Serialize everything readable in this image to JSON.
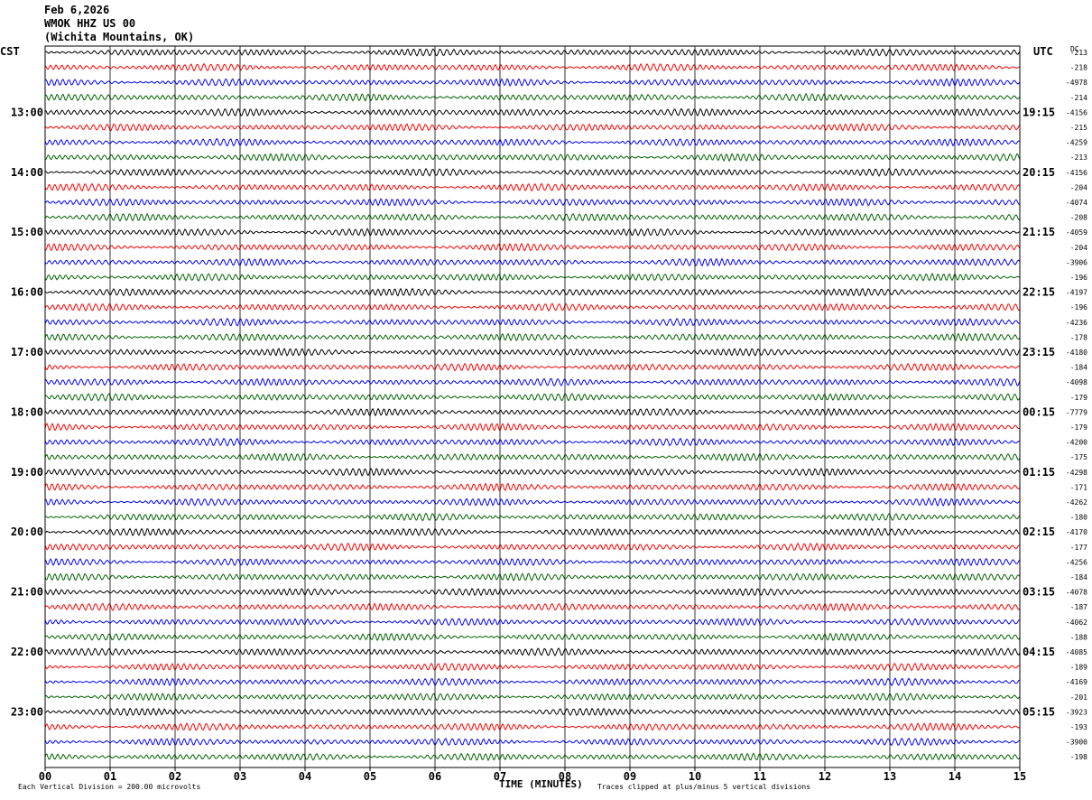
{
  "header": {
    "date": "Feb 6,2026",
    "station": "WMOK HHZ US 00",
    "location": "(Wichita Mountains, OK)"
  },
  "left_tz": "CST",
  "right_tz": "UTC",
  "dc_label": "DC",
  "footer": {
    "scale_note": "Each Vertical Division =  200.00 microvolts",
    "xlabel": "TIME (MINUTES)",
    "clip_note": "Traces clipped at plus/minus 5 vertical divisions"
  },
  "colors": {
    "trace_cycle": [
      "#000000",
      "#ff0000",
      "#0000ff",
      "#006400"
    ],
    "grid": "#000000",
    "background": "#ffffff"
  },
  "chart_data": {
    "type": "line",
    "title": "WMOK HHZ US 00 (Wichita Mountains, OK)",
    "xlabel": "TIME (MINUTES)",
    "xlim": [
      0,
      15
    ],
    "x_ticks": [
      "00",
      "01",
      "02",
      "03",
      "04",
      "05",
      "06",
      "07",
      "08",
      "09",
      "10",
      "11",
      "12",
      "13",
      "14",
      "15"
    ],
    "rows": 48,
    "minutes_per_row": 15,
    "left_hour_labels": [
      "13:00",
      "14:00",
      "15:00",
      "16:00",
      "17:00",
      "18:00",
      "19:00",
      "20:00",
      "21:00",
      "22:00",
      "23:00"
    ],
    "right_hour_labels": [
      "19:15",
      "20:15",
      "21:15",
      "22:15",
      "23:15",
      "00:15",
      "01:15",
      "02:15",
      "03:15",
      "04:15",
      "05:15"
    ],
    "dc_offsets": [
      "-213",
      "-218",
      "-4978",
      "-214",
      "-4156",
      "-215",
      "-4259",
      "-213",
      "-4156",
      "-204",
      "-4074",
      "-208",
      "-4059",
      "-204",
      "-3906",
      "-196",
      "-4197",
      "-196",
      "-4236",
      "-178",
      "-4180",
      "-184",
      "-4098",
      "-179",
      "-7779",
      "-179",
      "-4200",
      "-175",
      "-4298",
      "-171",
      "-4262",
      "-180",
      "-4170",
      "-177",
      "-4256",
      "-184",
      "-4078",
      "-187",
      "-4062",
      "-188",
      "-4085",
      "-189",
      "-4169",
      "-201",
      "-3923",
      "-193",
      "-3900",
      "-198"
    ]
  }
}
